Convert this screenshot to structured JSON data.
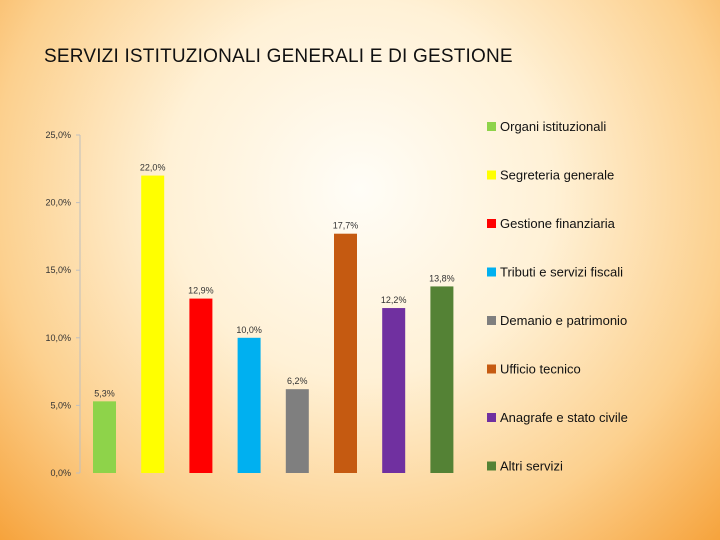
{
  "slide": {
    "title": "SERVIZI ISTITUZIONALI GENERALI E DI GESTIONE"
  },
  "chart_data": {
    "type": "bar",
    "title": "SERVIZI ISTITUZIONALI GENERALI E DI GESTIONE",
    "xlabel": "",
    "ylabel": "",
    "ylim": [
      0,
      25
    ],
    "y_ticks": [
      "0,0%",
      "5,0%",
      "10,0%",
      "15,0%",
      "20,0%",
      "25,0%"
    ],
    "y_tick_values": [
      0,
      5,
      10,
      15,
      20,
      25
    ],
    "grid": false,
    "legend_position": "right",
    "series": [
      {
        "name": "Organi istituzionali",
        "value": 5.3,
        "label": "5,3%",
        "color": "#8ed34a"
      },
      {
        "name": "Segreteria generale",
        "value": 22.0,
        "label": "22,0%",
        "color": "#ffff00"
      },
      {
        "name": "Gestione finanziaria",
        "value": 12.9,
        "label": "12,9%",
        "color": "#ff0000"
      },
      {
        "name": "Tributi e servizi fiscali",
        "value": 10.0,
        "label": "10,0%",
        "color": "#00b0f0"
      },
      {
        "name": "Demanio e patrimonio",
        "value": 6.2,
        "label": "6,2%",
        "color": "#7f7f7f"
      },
      {
        "name": "Ufficio tecnico",
        "value": 17.7,
        "label": "17,7%",
        "color": "#c55a11"
      },
      {
        "name": "Anagrafe e stato civile",
        "value": 12.2,
        "label": "12,2%",
        "color": "#7030a0"
      },
      {
        "name": "Altri servizi",
        "value": 13.8,
        "label": "13,8%",
        "color": "#548235"
      }
    ]
  }
}
